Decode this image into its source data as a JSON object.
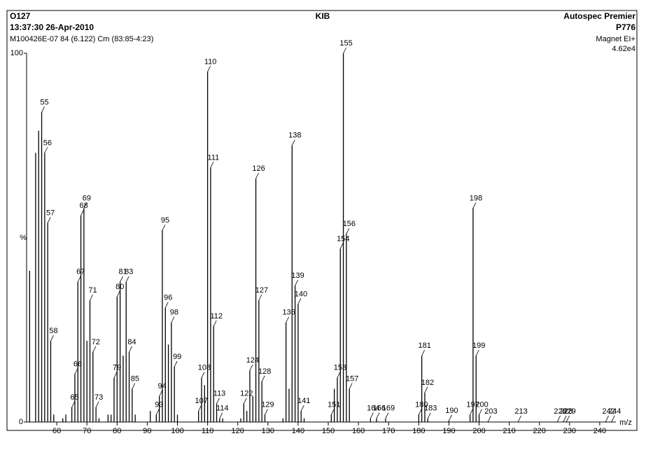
{
  "chart_data": {
    "type": "stick",
    "header": {
      "id": "O127",
      "datetime": "13:37:30  26-Apr-2010",
      "scan": "M100426E-07 84 (6.122) Cm (83:85-4:23)",
      "title": "KIB",
      "instrument": "Autospec Premier",
      "code": "P776",
      "mode": "Magnet EI+",
      "scale": "4.62e4"
    },
    "xlabel": "m/z",
    "ylabel": "%",
    "color": "#000000",
    "xlim": [
      50,
      246
    ],
    "ylim": [
      0,
      111.6
    ],
    "xticks": [
      60,
      70,
      80,
      90,
      100,
      110,
      120,
      130,
      140,
      150,
      160,
      170,
      180,
      190,
      200,
      210,
      220,
      230,
      240
    ],
    "yticks": [
      0,
      100
    ],
    "x": [
      55,
      56,
      57,
      58,
      65,
      66,
      67,
      68,
      69,
      71,
      72,
      73,
      79,
      80,
      81,
      83,
      84,
      85,
      93,
      94,
      95,
      96,
      98,
      99,
      107,
      108,
      110,
      111,
      112,
      113,
      114,
      122,
      124,
      126,
      127,
      128,
      129,
      136,
      138,
      139,
      140,
      141,
      151,
      153,
      154,
      155,
      156,
      157,
      164,
      166,
      169,
      180,
      181,
      182,
      183,
      190,
      197,
      198,
      199,
      200,
      203,
      213,
      226,
      228,
      229,
      242,
      244
    ],
    "values": [
      84,
      73,
      54,
      22,
      4,
      13,
      38,
      56,
      58,
      33,
      19,
      4,
      12,
      34,
      38,
      38,
      19,
      9,
      2,
      7,
      52,
      31,
      27,
      15,
      3,
      12,
      95,
      69,
      26,
      5,
      1,
      5,
      14,
      66,
      33,
      11,
      2,
      27,
      75,
      37,
      32,
      3,
      2,
      12,
      47,
      100,
      51,
      9,
      1,
      1,
      1,
      2,
      18,
      8,
      1,
      0.4,
      2,
      58,
      18,
      2,
      0.2,
      0.2,
      0.2,
      0.2,
      0.2,
      0.2,
      0.2
    ],
    "minor_peaks": {
      "x": [
        51,
        53,
        54,
        59,
        62,
        63,
        70,
        74,
        77,
        78,
        82,
        86,
        91,
        97,
        100,
        109,
        115,
        121,
        123,
        125,
        135,
        137,
        142,
        152
      ],
      "values": [
        41,
        73,
        79,
        2,
        1,
        2,
        22,
        1,
        2,
        2,
        18,
        2,
        3,
        21,
        2,
        10,
        1,
        1,
        3,
        7,
        1,
        9,
        1,
        9
      ]
    }
  }
}
